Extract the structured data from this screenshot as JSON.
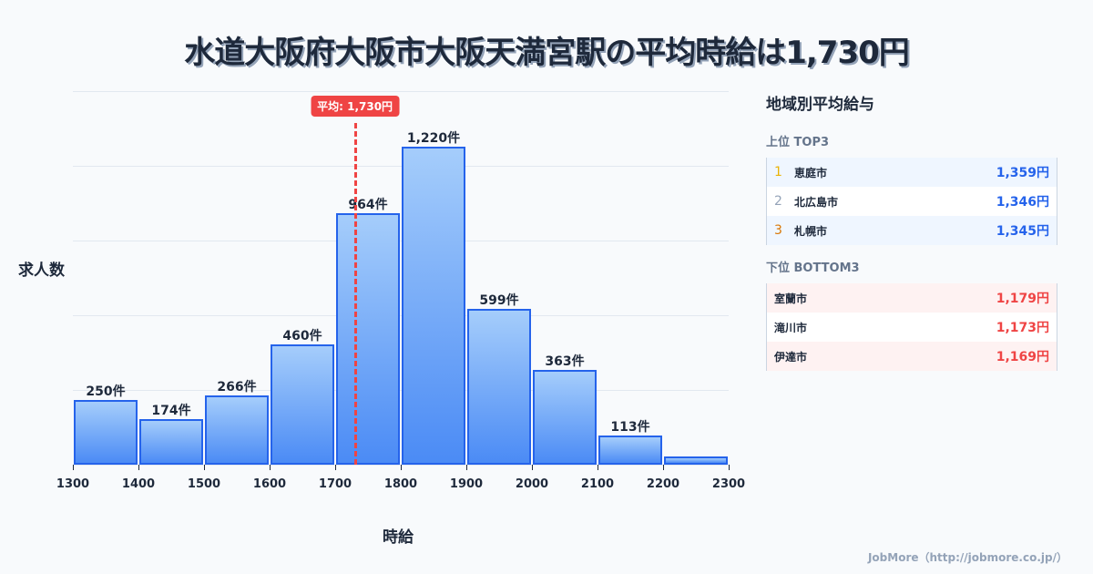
{
  "title": "水道大阪府大阪市大阪天満宮駅の平均時給は1,730円",
  "chart_data": {
    "type": "bar",
    "title": "水道大阪府大阪市大阪天満宮駅の平均時給は1,730円",
    "xlabel": "時給",
    "ylabel": "求人数",
    "bins": [
      1300,
      1400,
      1500,
      1600,
      1700,
      1800,
      1900,
      2000,
      2100,
      2200,
      2300
    ],
    "categories": [
      "1300-1400",
      "1400-1500",
      "1500-1600",
      "1600-1700",
      "1700-1800",
      "1800-1900",
      "1900-2000",
      "2000-2100",
      "2100-2200",
      "2200-2300"
    ],
    "values": [
      250,
      174,
      266,
      460,
      964,
      1220,
      599,
      363,
      113,
      31
    ],
    "value_labels": [
      "250件",
      "174件",
      "266件",
      "460件",
      "964件",
      "1,220件",
      "599件",
      "363件",
      "113件",
      ""
    ],
    "x_ticks": [
      "1300",
      "1400",
      "1500",
      "1600",
      "1700",
      "1800",
      "1900",
      "2000",
      "2100",
      "2200",
      "2300"
    ],
    "ylim": [
      0,
      1434
    ],
    "grid": true,
    "average": {
      "value": 1730,
      "label": "平均: 1,730円",
      "color": "#ef4444"
    },
    "bar_color": "#3b82f6",
    "bar_border": "#2563eb"
  },
  "panel": {
    "title": "地域別平均給与",
    "top": {
      "heading": "上位 TOP3",
      "items": [
        {
          "rank": "1",
          "name": "恵庭市",
          "value": "1,359円",
          "rank_color": "#eab308"
        },
        {
          "rank": "2",
          "name": "北広島市",
          "value": "1,346円",
          "rank_color": "#94a3b8"
        },
        {
          "rank": "3",
          "name": "札幌市",
          "value": "1,345円",
          "rank_color": "#d97706"
        }
      ]
    },
    "bottom": {
      "heading": "下位 BOTTOM3",
      "items": [
        {
          "name": "室蘭市",
          "value": "1,179円"
        },
        {
          "name": "滝川市",
          "value": "1,173円"
        },
        {
          "name": "伊達市",
          "value": "1,169円"
        }
      ]
    }
  },
  "footer": "JobMore（http://jobmore.co.jp/）"
}
